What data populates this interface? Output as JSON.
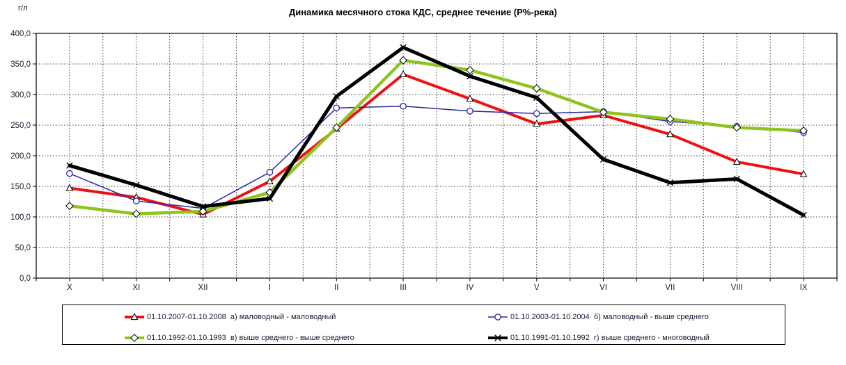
{
  "chart_data": {
    "type": "line",
    "title": "Динамика месячного стока КДС, среднее течение (Р%-река)",
    "ylabel": "г/л",
    "xlabel": "",
    "categories": [
      "X",
      "XI",
      "XII",
      "I",
      "II",
      "III",
      "IV",
      "V",
      "VI",
      "VII",
      "VIII",
      "IX"
    ],
    "y_axis": {
      "min": 0,
      "max": 400,
      "step": 50,
      "tick_labels": [
        "0,0",
        "50,0",
        "100,0",
        "150,0",
        "200,0",
        "250,0",
        "300,0",
        "350,0",
        "400,0"
      ]
    },
    "grid": "both-dashed",
    "legend_position": "bottom",
    "series": [
      {
        "id": "2007-2008",
        "label": "01.10.2007-01.10.2008  а) маловодный - маловодный",
        "color": "#ee1111",
        "marker": "triangle",
        "line_width": 4,
        "values": [
          147,
          132,
          104,
          158,
          244,
          333,
          293,
          252,
          266,
          235,
          190,
          170
        ]
      },
      {
        "id": "2003-2004",
        "label": "01.10.2003-01.10.2004  б) маловодный - выше среднего",
        "color": "#2626a8",
        "marker": "circle",
        "line_width": 1.5,
        "values": [
          171,
          126,
          114,
          173,
          278,
          281,
          273,
          269,
          272,
          256,
          248,
          238
        ]
      },
      {
        "id": "1992-1993",
        "label": "01.10.1992-01.10.1993  в) выше среднего - выше среднего",
        "color": "#8fc31f",
        "marker": "diamond",
        "line_width": 4.5,
        "values": [
          118,
          105,
          109,
          140,
          246,
          356,
          340,
          310,
          271,
          260,
          246,
          241
        ]
      },
      {
        "id": "1991-1992",
        "label": "01.10.1991-01.10.1992  г) выше среднего - многоводный",
        "color": "#000000",
        "marker": "x",
        "line_width": 5,
        "values": [
          184,
          152,
          117,
          130,
          297,
          377,
          330,
          295,
          194,
          156,
          162,
          103
        ]
      }
    ],
    "colors": {
      "plot_border": "#000000",
      "gridline": "#3c3c3c",
      "tick_text": "#1c1c30",
      "background": "#ffffff"
    }
  }
}
